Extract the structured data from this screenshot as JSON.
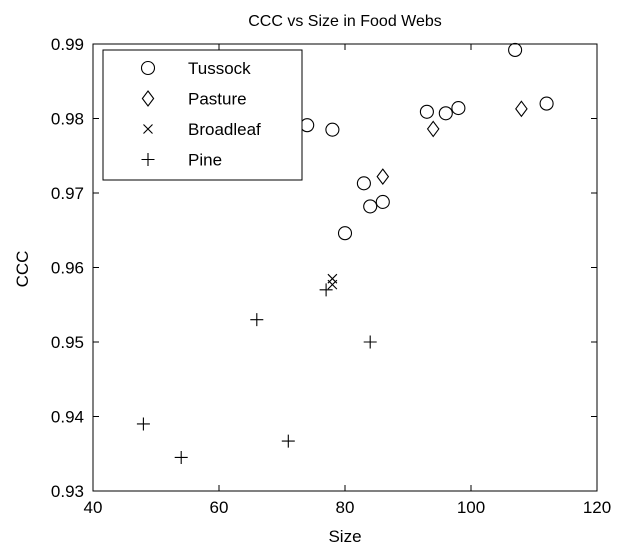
{
  "chart_data": {
    "type": "scatter",
    "title": "CCC vs Size in Food Webs",
    "xlabel": "Size",
    "ylabel": "CCC",
    "xlim": [
      40,
      120
    ],
    "ylim": [
      0.93,
      0.99
    ],
    "xticks": [
      "40",
      "60",
      "80",
      "100",
      "120"
    ],
    "yticks": [
      "0.93",
      "0.94",
      "0.95",
      "0.96",
      "0.97",
      "0.98",
      "0.99"
    ],
    "grid": false,
    "legend_position": "top-left",
    "series": [
      {
        "name": "Tussock",
        "marker": "circle",
        "points": [
          {
            "x": 74,
            "y": 0.9791
          },
          {
            "x": 78,
            "y": 0.9785
          },
          {
            "x": 80,
            "y": 0.9646
          },
          {
            "x": 83,
            "y": 0.9713
          },
          {
            "x": 84,
            "y": 0.9682
          },
          {
            "x": 86,
            "y": 0.9688
          },
          {
            "x": 93,
            "y": 0.9809
          },
          {
            "x": 96,
            "y": 0.9807
          },
          {
            "x": 98,
            "y": 0.9814
          },
          {
            "x": 107,
            "y": 0.9892
          },
          {
            "x": 112,
            "y": 0.982
          }
        ]
      },
      {
        "name": "Pasture",
        "marker": "diamond",
        "points": [
          {
            "x": 86,
            "y": 0.9722
          },
          {
            "x": 94,
            "y": 0.9786
          },
          {
            "x": 108,
            "y": 0.9813
          }
        ]
      },
      {
        "name": "Broadleaf",
        "marker": "x",
        "points": [
          {
            "x": 78,
            "y": 0.9585
          },
          {
            "x": 78,
            "y": 0.9577
          }
        ]
      },
      {
        "name": "Pine",
        "marker": "plus",
        "points": [
          {
            "x": 48,
            "y": 0.939
          },
          {
            "x": 54,
            "y": 0.9345
          },
          {
            "x": 66,
            "y": 0.953
          },
          {
            "x": 71,
            "y": 0.9367
          },
          {
            "x": 77,
            "y": 0.957
          },
          {
            "x": 84,
            "y": 0.95
          }
        ]
      }
    ]
  }
}
